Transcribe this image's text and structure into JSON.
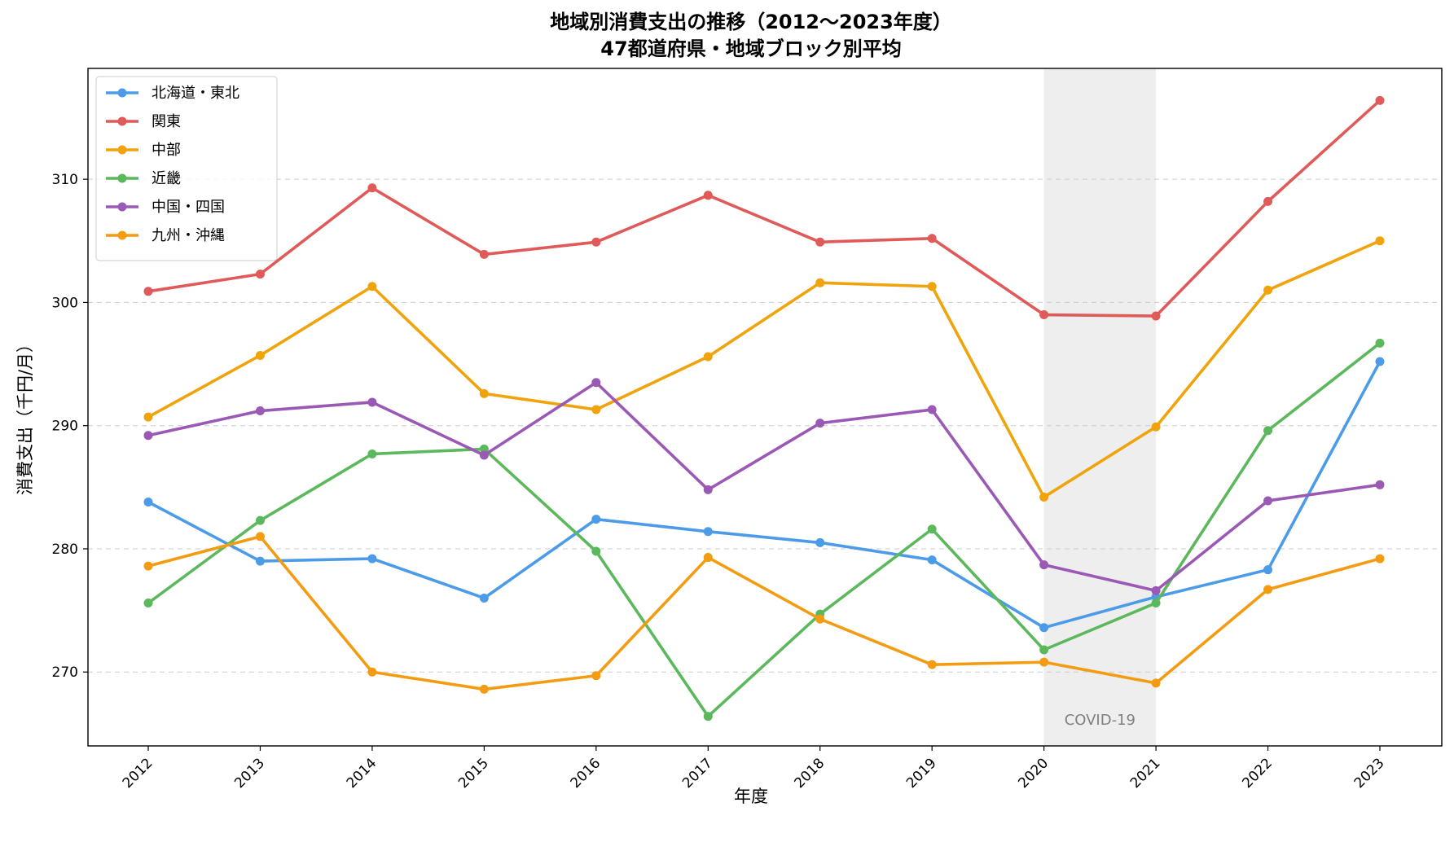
{
  "chart_data": {
    "type": "line",
    "title": "地域別消費支出の推移（2012〜2023年度）",
    "subtitle": "47都道府県・地域ブロック別平均",
    "xlabel": "年度",
    "ylabel": "消費支出（千円/月）",
    "categories": [
      "2012",
      "2013",
      "2014",
      "2015",
      "2016",
      "2017",
      "2018",
      "2019",
      "2020",
      "2021",
      "2022",
      "2023"
    ],
    "ylim": [
      264,
      319
    ],
    "yticks": [
      270,
      280,
      290,
      300,
      310
    ],
    "grid": "horizontal-dashed",
    "legend_position": "top-left",
    "shaded_region": {
      "from": "2020",
      "to": "2021",
      "label": "COVID-19",
      "color": "#d9d9d9"
    },
    "series": [
      {
        "name": "北海道・東北",
        "color": "#4c9be8",
        "values": [
          283.8,
          279.0,
          279.2,
          276.0,
          282.4,
          281.4,
          280.5,
          279.1,
          273.6,
          276.1,
          278.3,
          295.2
        ]
      },
      {
        "name": "関東",
        "color": "#e05a5a",
        "values": [
          300.9,
          302.3,
          309.3,
          303.9,
          304.9,
          308.7,
          304.9,
          305.2,
          299.0,
          298.9,
          308.2,
          316.4
        ]
      },
      {
        "name": "中部",
        "color": "#f0a30a",
        "values": [
          290.7,
          295.7,
          301.3,
          292.6,
          291.3,
          295.6,
          301.6,
          301.3,
          284.2,
          289.9,
          301.0,
          305.0
        ]
      },
      {
        "name": "近畿",
        "color": "#5cb85c",
        "values": [
          275.6,
          282.3,
          287.7,
          288.1,
          279.8,
          266.4,
          274.7,
          281.6,
          271.8,
          275.6,
          289.6,
          296.7
        ]
      },
      {
        "name": "中国・四国",
        "color": "#9b59b6",
        "values": [
          289.2,
          291.2,
          291.9,
          287.6,
          293.5,
          284.8,
          290.2,
          291.3,
          278.7,
          276.6,
          283.9,
          285.2
        ]
      },
      {
        "name": "九州・沖縄",
        "color": "#f39c12",
        "values": [
          278.6,
          281.0,
          270.0,
          268.6,
          269.7,
          279.3,
          274.3,
          270.6,
          270.8,
          269.1,
          276.7,
          279.2
        ]
      }
    ]
  }
}
